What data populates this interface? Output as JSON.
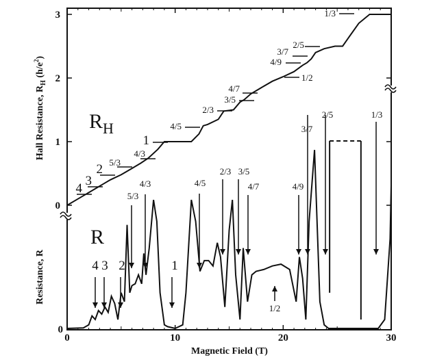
{
  "chart_data": {
    "type": "line",
    "xlabel": "Magnetic Field (T)",
    "xlim": [
      0,
      30
    ],
    "x_ticks": [
      0,
      10,
      20,
      30
    ],
    "colors": {
      "line": "#111111",
      "background": "#ffffff"
    },
    "grid": false,
    "upper_panel": {
      "title": "R_H",
      "title_main": "R",
      "title_sub": "H",
      "ylabel": "Hall Resistance, R_H (h/e²)",
      "ylabel_main": "Hall Resistance, R",
      "ylabel_sub": "H",
      "ylabel_unit": " (h/e",
      "ylabel_sup": "2",
      "ylabel_close": ")",
      "ylim": [
        0,
        3
      ],
      "y_ticks": [
        0,
        1,
        2,
        3
      ],
      "series": [
        {
          "x": [
            0,
            1,
            1.8,
            2.3,
            2.8,
            3.3,
            4,
            5,
            6,
            6.8,
            7.5,
            8.4,
            9.0,
            11.5,
            12.2,
            12.6,
            13.0,
            14.0,
            14.5,
            15.4,
            16.0,
            16.4,
            17.0,
            18.0,
            19.0,
            20.0,
            21.0,
            21.8,
            22.2,
            22.6,
            23.0,
            23.8,
            24.8,
            25.5,
            26.0,
            27.0,
            28.0,
            30.0
          ],
          "y": [
            0,
            0.1,
            0.18,
            0.23,
            0.28,
            0.33,
            0.4,
            0.48,
            0.58,
            0.66,
            0.74,
            0.88,
            1.0,
            1.0,
            1.12,
            1.25,
            1.27,
            1.35,
            1.48,
            1.5,
            1.62,
            1.66,
            1.75,
            1.85,
            1.95,
            2.02,
            2.1,
            2.2,
            2.24,
            2.3,
            2.4,
            2.46,
            2.5,
            2.5,
            2.62,
            2.86,
            3.0,
            3.0
          ]
        }
      ],
      "plateau_labels": [
        "4",
        "3",
        "2",
        "5/3",
        "4/3",
        "1",
        "4/5",
        "2/3",
        "3/5",
        "4/7",
        "1/2",
        "4/9",
        "3/7",
        "2/5",
        "1/3"
      ]
    },
    "lower_panel": {
      "title": "R",
      "ylabel": "Resistance, R",
      "series": [
        {
          "x": [
            0,
            1.5,
            2.0,
            2.3,
            2.6,
            2.9,
            3.2,
            3.5,
            3.8,
            4.1,
            4.4,
            4.7,
            5.0,
            5.3,
            5.55,
            5.8,
            6.0,
            6.3,
            6.6,
            6.9,
            7.1,
            7.3,
            7.6,
            8.0,
            8.3,
            8.6,
            9.0,
            9.3,
            10.0,
            10.7,
            11.0,
            11.5,
            11.9,
            12.3,
            12.7,
            13.1,
            13.5,
            13.9,
            14.2,
            14.6,
            15.0,
            15.3,
            15.6,
            16.0,
            16.3,
            16.7,
            17.1,
            17.5,
            18.2,
            19.0,
            19.8,
            20.6,
            21.2,
            21.5,
            21.8,
            22.1,
            22.4,
            22.9,
            23.4,
            23.8,
            24.2,
            25.0,
            26.0,
            27.0,
            28.0,
            28.8,
            29.4,
            29.9,
            30.0
          ],
          "y": [
            0,
            0.003,
            0.02,
            0.07,
            0.05,
            0.1,
            0.08,
            0.12,
            0.09,
            0.18,
            0.14,
            0.05,
            0.2,
            0.15,
            0.58,
            0.2,
            0.24,
            0.25,
            0.3,
            0.25,
            0.42,
            0.3,
            0.45,
            0.72,
            0.6,
            0.2,
            0.02,
            0.01,
            0.0,
            0.02,
            0.2,
            0.72,
            0.6,
            0.32,
            0.38,
            0.38,
            0.35,
            0.48,
            0.4,
            0.12,
            0.55,
            0.72,
            0.3,
            0.05,
            0.45,
            0.15,
            0.3,
            0.32,
            0.33,
            0.35,
            0.36,
            0.33,
            0.15,
            0.4,
            0.28,
            0.05,
            0.6,
            1.0,
            0.15,
            0.02,
            0.0,
            0.0,
            0.0,
            0.0,
            0.0,
            0.0,
            0.05,
            0.5,
            0.8
          ]
        }
      ],
      "saturation_segment": {
        "x": [
          24.3,
          27.2
        ],
        "y": 1.05,
        "style": "dashed"
      },
      "arrow_labels": [
        "4",
        "3",
        "2",
        "1",
        "5/3",
        "4/3",
        "4/5",
        "2/3",
        "3/5",
        "4/7",
        "4/9",
        "3/7",
        "2/5",
        "1/3",
        "1/2"
      ]
    }
  }
}
